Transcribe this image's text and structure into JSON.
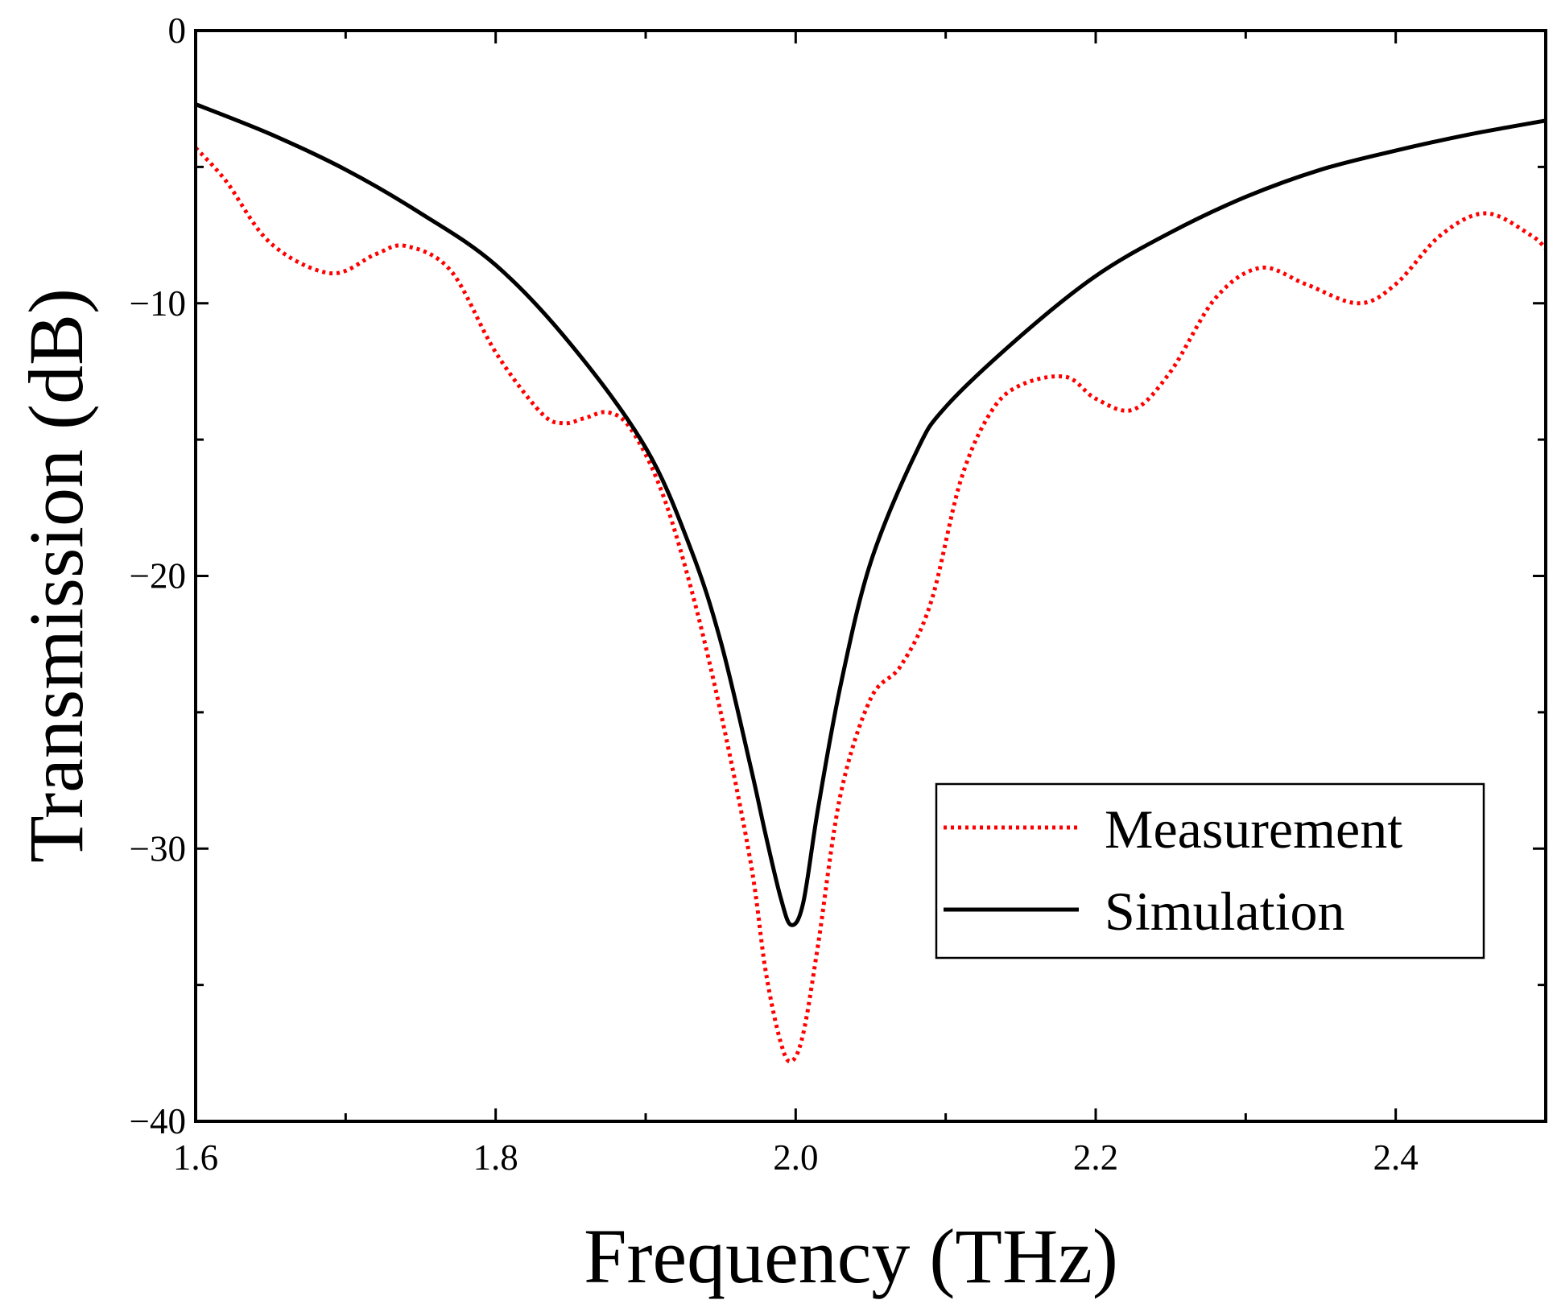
{
  "chart_data": {
    "type": "line",
    "xlabel": "Frequency (THz)",
    "ylabel": "Transmission (dB)",
    "xlim": [
      1.6,
      2.5
    ],
    "ylim": [
      -40,
      0
    ],
    "xticks": [
      1.6,
      1.8,
      2.0,
      2.2,
      2.4
    ],
    "xtick_labels": [
      "1.6",
      "1.8",
      "2.0",
      "2.2",
      "2.4"
    ],
    "yticks": [
      0,
      -10,
      -20,
      -30,
      -40
    ],
    "ytick_labels": [
      "0",
      "−10",
      "−20",
      "−30",
      "−40"
    ],
    "grid": false,
    "legend_position": "lower-right",
    "series": [
      {
        "name": "Measurement",
        "color": "#ff0000",
        "style": "dotted",
        "x": [
          1.6,
          1.62,
          1.65,
          1.69,
          1.72,
          1.74,
          1.77,
          1.8,
          1.83,
          1.845,
          1.86,
          1.875,
          1.89,
          1.91,
          1.93,
          1.95,
          1.97,
          1.98,
          1.99,
          1.997,
          2.005,
          2.015,
          2.03,
          2.05,
          2.07,
          2.09,
          2.11,
          2.13,
          2.15,
          2.18,
          2.2,
          2.225,
          2.25,
          2.28,
          2.31,
          2.34,
          2.375,
          2.4,
          2.43,
          2.46,
          2.49,
          2.5
        ],
        "y": [
          -4.3,
          -5.5,
          -7.8,
          -8.9,
          -8.2,
          -7.9,
          -8.8,
          -11.8,
          -14.0,
          -14.4,
          -14.2,
          -14.0,
          -14.6,
          -16.8,
          -20.4,
          -25.0,
          -30.5,
          -34.5,
          -37.1,
          -37.8,
          -36.8,
          -33.5,
          -28.0,
          -24.5,
          -23.3,
          -21.0,
          -16.5,
          -14.0,
          -13.0,
          -12.7,
          -13.5,
          -13.9,
          -12.5,
          -9.8,
          -8.7,
          -9.3,
          -10.0,
          -9.3,
          -7.5,
          -6.7,
          -7.5,
          -8.0
        ]
      },
      {
        "name": "Simulation",
        "color": "#000000",
        "style": "solid",
        "x": [
          1.6,
          1.65,
          1.7,
          1.75,
          1.8,
          1.85,
          1.9,
          1.93,
          1.95,
          1.97,
          1.98,
          1.99,
          1.997,
          2.005,
          2.015,
          2.03,
          2.05,
          2.08,
          2.1,
          2.15,
          2.2,
          2.25,
          2.3,
          2.35,
          2.4,
          2.45,
          2.5
        ],
        "y": [
          -2.7,
          -3.8,
          -5.1,
          -6.7,
          -8.6,
          -11.5,
          -15.3,
          -19.0,
          -22.4,
          -27.0,
          -29.5,
          -31.8,
          -32.8,
          -32.0,
          -28.5,
          -24.0,
          -19.5,
          -15.5,
          -13.8,
          -11.2,
          -9.0,
          -7.4,
          -6.1,
          -5.1,
          -4.4,
          -3.8,
          -3.3
        ]
      }
    ]
  }
}
